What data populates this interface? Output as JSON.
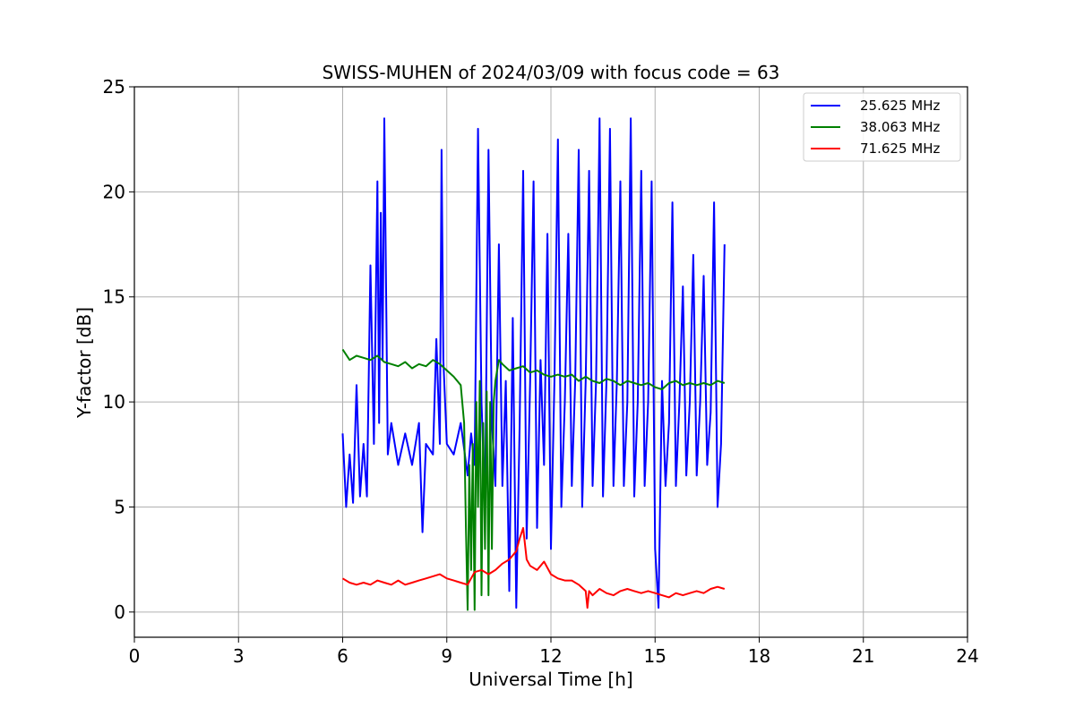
{
  "chart_data": {
    "type": "line",
    "title": "SWISS-MUHEN of 2024/03/09 with focus code = 63",
    "xlabel": "Universal Time [h]",
    "ylabel": "Y-factor [dB]",
    "xlim": [
      0,
      24
    ],
    "ylim": [
      -1.2,
      25
    ],
    "xticks": [
      0,
      3,
      6,
      9,
      12,
      15,
      18,
      21,
      24
    ],
    "yticks": [
      0,
      5,
      10,
      15,
      20,
      25
    ],
    "grid": true,
    "legend_position": "top-right",
    "series": [
      {
        "name": "25.625 MHz",
        "color": "#0000ff",
        "x": [
          6.0,
          6.1,
          6.2,
          6.3,
          6.4,
          6.5,
          6.6,
          6.7,
          6.8,
          6.9,
          7.0,
          7.05,
          7.1,
          7.15,
          7.2,
          7.3,
          7.4,
          7.6,
          7.8,
          8.0,
          8.2,
          8.3,
          8.4,
          8.6,
          8.7,
          8.8,
          8.85,
          8.9,
          9.0,
          9.2,
          9.4,
          9.6,
          9.7,
          9.8,
          9.9,
          10.0,
          10.1,
          10.2,
          10.3,
          10.4,
          10.5,
          10.6,
          10.7,
          10.8,
          10.9,
          11.0,
          11.1,
          11.2,
          11.3,
          11.4,
          11.5,
          11.6,
          11.7,
          11.8,
          11.9,
          12.0,
          12.1,
          12.2,
          12.3,
          12.4,
          12.5,
          12.6,
          12.7,
          12.8,
          12.9,
          13.0,
          13.1,
          13.2,
          13.3,
          13.4,
          13.5,
          13.6,
          13.7,
          13.8,
          13.9,
          14.0,
          14.1,
          14.2,
          14.3,
          14.4,
          14.5,
          14.6,
          14.7,
          14.8,
          14.9,
          15.0,
          15.1,
          15.2,
          15.3,
          15.4,
          15.5,
          15.6,
          15.7,
          15.8,
          15.9,
          16.0,
          16.1,
          16.2,
          16.3,
          16.4,
          16.5,
          16.6,
          16.7,
          16.8,
          16.9,
          17.0
        ],
        "y": [
          8.5,
          5.0,
          7.5,
          5.2,
          10.8,
          5.5,
          8.0,
          5.5,
          16.5,
          8.0,
          20.5,
          9.0,
          19.0,
          12.0,
          23.5,
          7.5,
          9.0,
          7.0,
          8.5,
          7.0,
          9.0,
          3.8,
          8.0,
          7.5,
          13.0,
          8.0,
          22.0,
          12.0,
          8.0,
          7.5,
          9.0,
          6.5,
          8.5,
          7.0,
          23.0,
          10.0,
          5.0,
          22.0,
          9.0,
          6.0,
          17.5,
          6.0,
          11.0,
          1.0,
          14.0,
          0.2,
          9.0,
          21.0,
          3.5,
          11.0,
          20.5,
          4.0,
          12.0,
          7.0,
          18.0,
          3.0,
          11.0,
          22.5,
          5.0,
          10.0,
          18.0,
          6.0,
          11.0,
          22.0,
          5.0,
          11.0,
          21.0,
          6.0,
          11.0,
          23.5,
          5.5,
          11.0,
          23.0,
          6.0,
          11.0,
          20.5,
          6.0,
          10.0,
          23.5,
          5.5,
          10.0,
          21.0,
          6.0,
          10.0,
          20.5,
          3.0,
          0.2,
          11.0,
          6.0,
          9.0,
          19.5,
          6.0,
          10.0,
          15.5,
          6.5,
          10.0,
          17.0,
          6.5,
          10.0,
          16.0,
          7.0,
          9.5,
          19.5,
          5.0,
          8.0,
          17.5
        ]
      },
      {
        "name": "38.063 MHz",
        "color": "#008000",
        "x": [
          6.0,
          6.2,
          6.4,
          6.6,
          6.8,
          7.0,
          7.2,
          7.4,
          7.6,
          7.8,
          8.0,
          8.2,
          8.4,
          8.6,
          8.8,
          9.0,
          9.2,
          9.4,
          9.5,
          9.55,
          9.6,
          9.65,
          9.7,
          9.75,
          9.8,
          9.85,
          9.9,
          9.95,
          10.0,
          10.05,
          10.1,
          10.15,
          10.2,
          10.25,
          10.3,
          10.35,
          10.4,
          10.5,
          10.6,
          10.8,
          11.0,
          11.2,
          11.4,
          11.6,
          11.8,
          12.0,
          12.2,
          12.4,
          12.6,
          12.8,
          13.0,
          13.2,
          13.4,
          13.6,
          13.8,
          14.0,
          14.2,
          14.4,
          14.6,
          14.8,
          15.0,
          15.2,
          15.4,
          15.6,
          15.8,
          16.0,
          16.2,
          16.4,
          16.6,
          16.8,
          17.0
        ],
        "y": [
          12.5,
          12.0,
          12.2,
          12.1,
          12.0,
          12.2,
          11.9,
          11.8,
          11.7,
          11.9,
          11.6,
          11.8,
          11.7,
          12.0,
          11.8,
          11.5,
          11.2,
          10.8,
          9.0,
          4.0,
          0.1,
          7.0,
          2.0,
          8.0,
          0.1,
          10.0,
          5.0,
          11.0,
          0.8,
          9.0,
          3.0,
          10.5,
          0.8,
          10.0,
          3.0,
          10.0,
          11.0,
          12.0,
          11.8,
          11.5,
          11.6,
          11.7,
          11.4,
          11.5,
          11.3,
          11.2,
          11.3,
          11.2,
          11.3,
          11.0,
          11.2,
          11.0,
          10.9,
          11.1,
          11.0,
          10.8,
          11.0,
          10.9,
          10.8,
          10.9,
          10.7,
          10.6,
          10.9,
          11.0,
          10.8,
          10.9,
          10.8,
          10.9,
          10.8,
          11.0,
          10.9
        ]
      },
      {
        "name": "71.625 MHz",
        "color": "#ff0000",
        "x": [
          6.0,
          6.2,
          6.4,
          6.6,
          6.8,
          7.0,
          7.2,
          7.4,
          7.6,
          7.8,
          8.0,
          8.2,
          8.4,
          8.6,
          8.8,
          9.0,
          9.2,
          9.4,
          9.6,
          9.8,
          10.0,
          10.2,
          10.4,
          10.6,
          10.8,
          11.0,
          11.1,
          11.2,
          11.3,
          11.4,
          11.6,
          11.8,
          12.0,
          12.2,
          12.4,
          12.6,
          12.8,
          13.0,
          13.05,
          13.1,
          13.2,
          13.4,
          13.6,
          13.8,
          14.0,
          14.2,
          14.4,
          14.6,
          14.8,
          15.0,
          15.2,
          15.4,
          15.6,
          15.8,
          16.0,
          16.2,
          16.4,
          16.6,
          16.8,
          17.0
        ],
        "y": [
          1.6,
          1.4,
          1.3,
          1.4,
          1.3,
          1.5,
          1.4,
          1.3,
          1.5,
          1.3,
          1.4,
          1.5,
          1.6,
          1.7,
          1.8,
          1.6,
          1.5,
          1.4,
          1.3,
          1.9,
          2.0,
          1.8,
          2.0,
          2.3,
          2.5,
          2.9,
          3.5,
          4.0,
          2.5,
          2.2,
          2.0,
          2.4,
          1.8,
          1.6,
          1.5,
          1.5,
          1.3,
          1.0,
          0.2,
          1.0,
          0.8,
          1.1,
          0.9,
          0.8,
          1.0,
          1.1,
          1.0,
          0.9,
          1.0,
          0.9,
          0.8,
          0.7,
          0.9,
          0.8,
          0.9,
          1.0,
          0.9,
          1.1,
          1.2,
          1.1
        ]
      }
    ]
  }
}
